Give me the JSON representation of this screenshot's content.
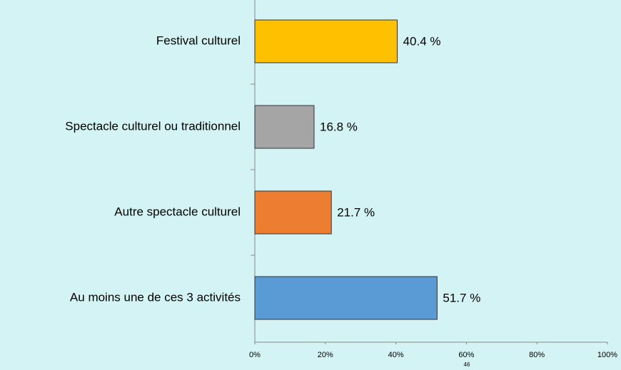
{
  "chart_data": {
    "type": "bar",
    "orientation": "horizontal",
    "categories": [
      "Festival culturel",
      "Spectacle culturel ou traditionnel",
      "Autre spectacle culturel",
      "Au moins une de ces 3 activités"
    ],
    "values": [
      40.4,
      16.8,
      21.7,
      51.7
    ],
    "value_labels": [
      "40.4 %",
      "16.8 %",
      "21.7 %",
      "51.7 %"
    ],
    "colors": [
      "#ffc000",
      "#a5a5a5",
      "#ed7d31",
      "#5b9bd5"
    ],
    "xlim": [
      0,
      100
    ],
    "xticks": [
      {
        "value": 0,
        "label": "0%"
      },
      {
        "value": 20,
        "label": "20%"
      },
      {
        "value": 40,
        "label": "40%"
      },
      {
        "value": 60,
        "label": "60%"
      },
      {
        "value": 80,
        "label": "80%"
      },
      {
        "value": 100,
        "label": "100%"
      }
    ],
    "page_number": "46"
  }
}
